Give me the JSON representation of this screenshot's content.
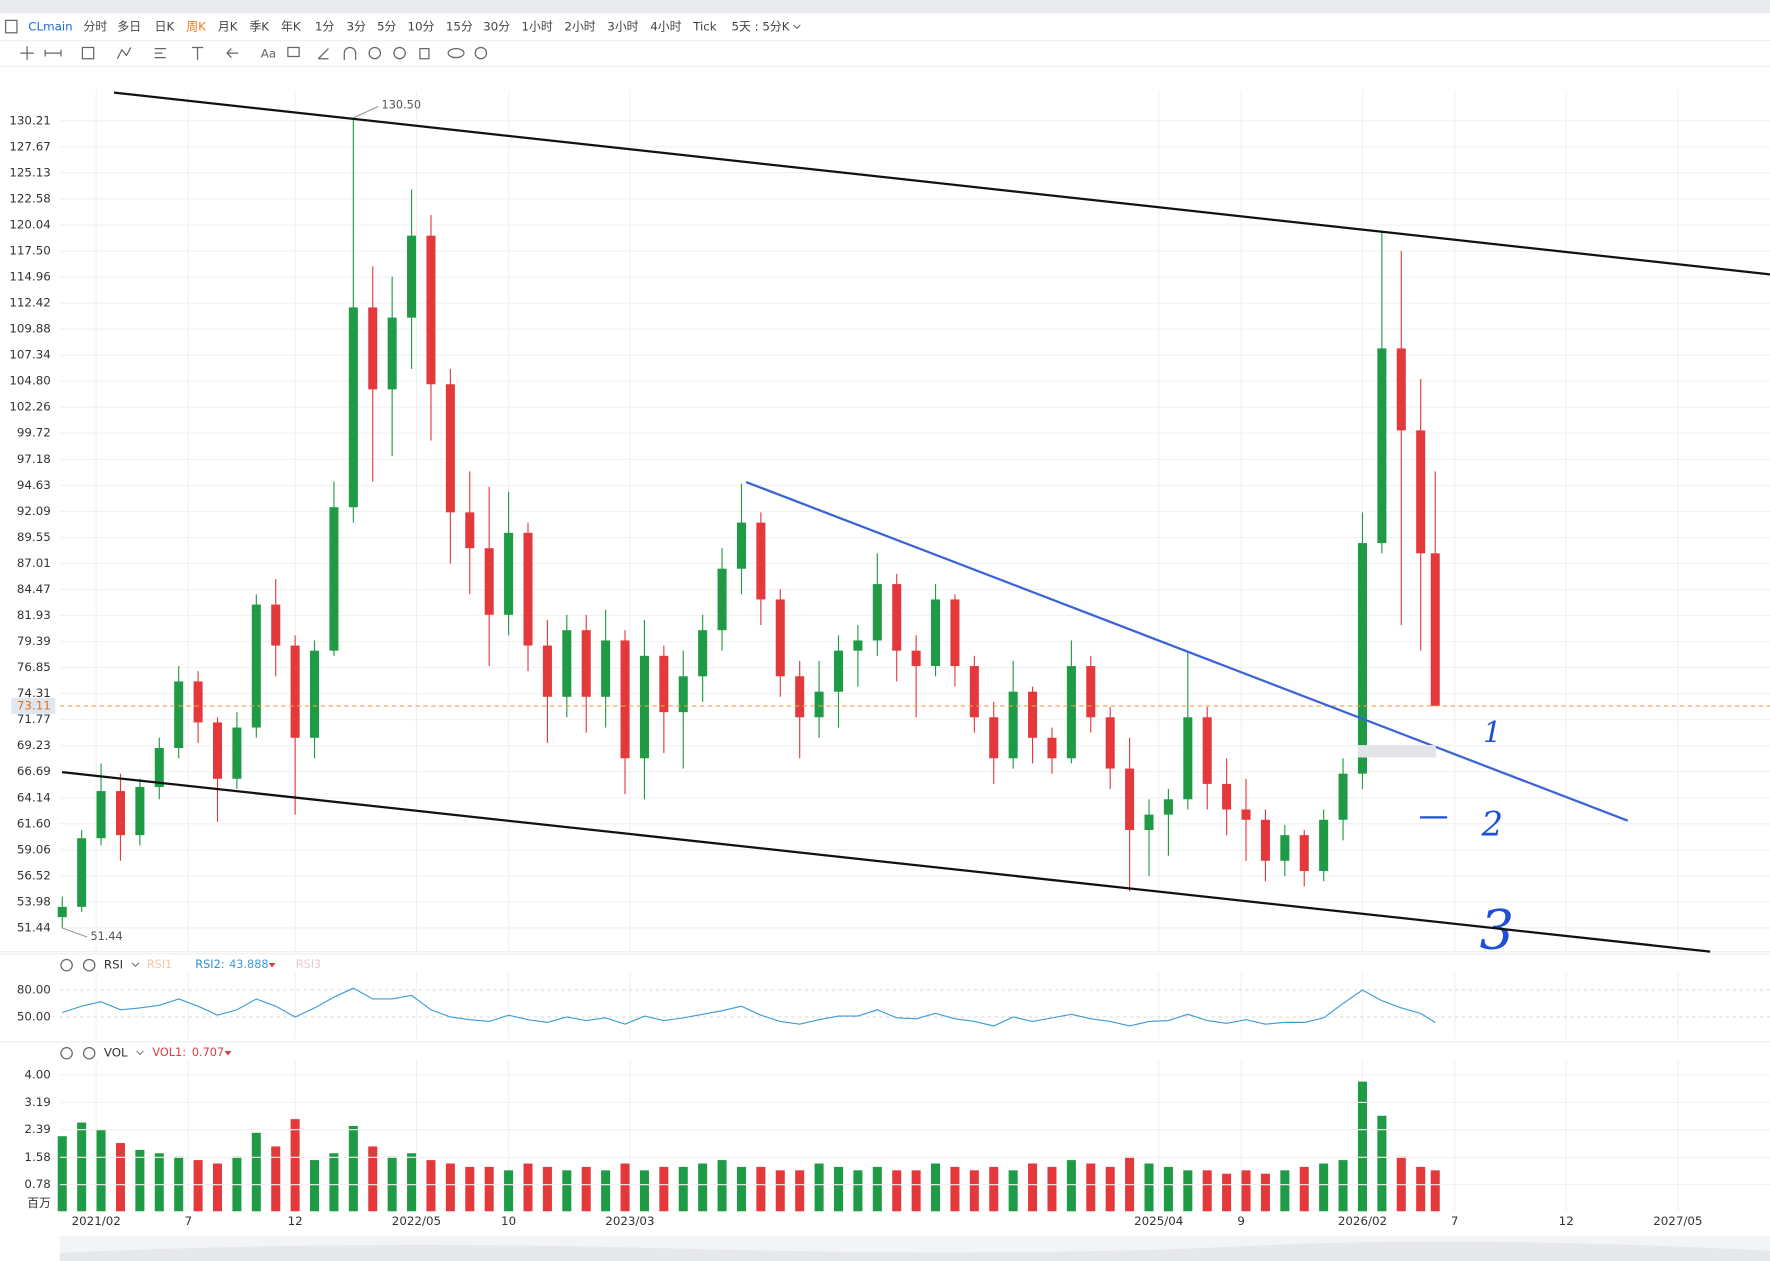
{
  "toolbar": {
    "symbol": "CLmain",
    "periods": [
      "分时",
      "多日",
      "日K",
      "周K",
      "月K",
      "季K",
      "年K",
      "1分",
      "3分",
      "5分",
      "10分",
      "15分",
      "30分",
      "1小时",
      "2小时",
      "3小时",
      "4小时",
      "Tick",
      "5天 : 5分K"
    ],
    "selected": 3,
    "text_tool": "Aa"
  },
  "chart_data": {
    "type": "candlestick",
    "candles": {
      "x": [
        0,
        4,
        8,
        12,
        16,
        20,
        24,
        28,
        32,
        36,
        40,
        44,
        48,
        52,
        56,
        60,
        64,
        68,
        72,
        76,
        80,
        84,
        88,
        92,
        96,
        100,
        104,
        108,
        112,
        116,
        120,
        124,
        128,
        132,
        136,
        140,
        144,
        148,
        152,
        156,
        160,
        164,
        168,
        172,
        176,
        180,
        184,
        188,
        192,
        196,
        200,
        204,
        208,
        212,
        216,
        220,
        224,
        228,
        232,
        236,
        240,
        244,
        248,
        252,
        256,
        260,
        264,
        268,
        272,
        276,
        280,
        283
      ],
      "open": [
        52.5,
        53.5,
        60.2,
        64.8,
        60.5,
        65.2,
        69.0,
        75.5,
        71.5,
        66.0,
        71.0,
        83.0,
        79.0,
        70.0,
        78.5,
        92.5,
        112.0,
        104.0,
        111.0,
        119.0,
        104.5,
        92.0,
        88.5,
        82.0,
        90.0,
        79.0,
        74.0,
        80.5,
        74.0,
        79.5,
        68.0,
        78.0,
        72.5,
        76.0,
        80.5,
        86.5,
        91.0,
        83.5,
        76.0,
        72.0,
        74.5,
        78.5,
        79.5,
        85.0,
        78.5,
        77.0,
        83.5,
        77.0,
        72.0,
        68.0,
        74.5,
        70.0,
        68.0,
        77.0,
        72.0,
        67.0,
        61.0,
        62.5,
        64.0,
        72.0,
        65.5,
        63.0,
        62.0,
        58.0,
        60.5,
        57.0,
        62.0,
        66.5,
        89.0,
        108.0,
        100.0,
        88.0
      ],
      "high": [
        54.5,
        61.0,
        67.5,
        66.5,
        66.0,
        70.0,
        77.0,
        76.5,
        72.0,
        72.5,
        84.0,
        85.5,
        80.0,
        79.5,
        95.0,
        130.5,
        116.0,
        115.0,
        123.5,
        121.0,
        106.0,
        96.0,
        94.5,
        94.0,
        91.0,
        81.5,
        82.0,
        82.0,
        82.5,
        80.5,
        81.5,
        79.0,
        78.5,
        82.0,
        88.5,
        94.8,
        92.0,
        84.5,
        77.5,
        77.5,
        80.0,
        81.0,
        88.0,
        86.0,
        80.0,
        85.0,
        84.0,
        78.0,
        73.5,
        77.5,
        75.0,
        71.0,
        79.5,
        78.0,
        73.0,
        70.0,
        64.0,
        65.0,
        78.5,
        73.0,
        68.0,
        66.0,
        63.0,
        61.5,
        61.0,
        63.0,
        68.0,
        92.0,
        119.5,
        117.5,
        105.0,
        96.0
      ],
      "low": [
        51.44,
        53.0,
        59.5,
        58.0,
        59.5,
        64.0,
        68.0,
        69.5,
        61.8,
        65.0,
        70.0,
        76.0,
        62.5,
        68.0,
        78.0,
        91.0,
        95.0,
        97.5,
        106.0,
        99.0,
        87.0,
        84.0,
        77.0,
        80.0,
        76.5,
        69.5,
        72.0,
        70.5,
        71.0,
        64.5,
        64.0,
        68.5,
        67.0,
        73.5,
        78.5,
        84.0,
        81.0,
        74.0,
        68.0,
        70.0,
        71.0,
        75.0,
        78.0,
        75.5,
        72.0,
        76.0,
        75.0,
        70.5,
        65.5,
        67.0,
        67.5,
        66.5,
        67.5,
        70.5,
        65.0,
        55.0,
        56.5,
        58.5,
        63.0,
        63.0,
        60.5,
        58.0,
        56.0,
        56.5,
        55.5,
        56.0,
        60.0,
        65.0,
        88.0,
        81.0,
        78.5,
        73.11
      ],
      "close": [
        53.5,
        60.2,
        64.8,
        60.5,
        65.2,
        69.0,
        75.5,
        71.5,
        66.0,
        71.0,
        83.0,
        79.0,
        70.0,
        78.5,
        92.5,
        112.0,
        104.0,
        111.0,
        119.0,
        104.5,
        92.0,
        88.5,
        82.0,
        90.0,
        79.0,
        74.0,
        80.5,
        74.0,
        79.5,
        68.0,
        78.0,
        72.5,
        76.0,
        80.5,
        86.5,
        91.0,
        83.5,
        76.0,
        72.0,
        74.5,
        78.5,
        79.5,
        85.0,
        78.5,
        77.0,
        83.5,
        77.0,
        72.0,
        68.0,
        74.5,
        70.0,
        68.0,
        77.0,
        72.0,
        67.0,
        61.0,
        62.5,
        64.0,
        72.0,
        65.5,
        63.0,
        62.0,
        58.0,
        60.5,
        57.0,
        62.0,
        66.5,
        89.0,
        108.0,
        100.0,
        88.0,
        73.11
      ]
    },
    "up_color": "#1f9a45",
    "down_color": "#e4393c",
    "xlim": [
      -0.5,
      352
    ],
    "xticks": [
      {
        "value": 7,
        "label": "2021/02"
      },
      {
        "value": 26,
        "label": "7"
      },
      {
        "value": 48,
        "label": "12"
      },
      {
        "value": 73,
        "label": "2022/05"
      },
      {
        "value": 92,
        "label": "10"
      },
      {
        "value": 117,
        "label": "2023/03"
      },
      {
        "value": 226,
        "label": "2025/04"
      },
      {
        "value": 243,
        "label": "9"
      },
      {
        "value": 268,
        "label": "2026/02"
      },
      {
        "value": 287,
        "label": "7"
      },
      {
        "value": 310,
        "label": "12"
      },
      {
        "value": 333,
        "label": "2027/05"
      }
    ],
    "ylim": [
      49.13,
      133.18
    ],
    "yticks": [
      130.21,
      127.67,
      125.13,
      122.58,
      120.04,
      {
        "value": 117.5,
        "label": "117.50"
      },
      114.96,
      112.42,
      109.88,
      107.34,
      {
        "value": 104.8,
        "label": "104.80"
      },
      102.26,
      99.72,
      97.18,
      94.63,
      92.09,
      89.55,
      87.01,
      84.47,
      81.93,
      79.39,
      76.85,
      74.31,
      71.77,
      69.23,
      66.69,
      64.14,
      {
        "value": 61.6,
        "label": "61.60"
      },
      59.06,
      56.52,
      53.98,
      51.44
    ],
    "grid": true,
    "last_price": 73.11,
    "last_price_color": "#f0a050",
    "annotations": [
      {
        "x": 60,
        "value": 130.5,
        "label": "130.50"
      },
      {
        "x": 0,
        "value": 51.44,
        "label": "51.44"
      }
    ],
    "rsi": {
      "title": "RSI",
      "labels": [
        "RSI1",
        "RSI2:",
        "RSI3"
      ],
      "value": 43.888,
      "color": "#3d9bd6",
      "ylim": [
        26,
        95
      ],
      "yticks": [
        {
          "value": 80,
          "label": "80.00"
        },
        {
          "value": 50,
          "label": "50.00"
        }
      ],
      "values": [
        55,
        62,
        67,
        58,
        60,
        63,
        70,
        62,
        52,
        58,
        70,
        62,
        50,
        60,
        72,
        82,
        70,
        70,
        74,
        58,
        50,
        47,
        45,
        52,
        47,
        44,
        50,
        46,
        49,
        42,
        51,
        46,
        49,
        53,
        57,
        62,
        52,
        45,
        42,
        47,
        51,
        51,
        58,
        49,
        48,
        54,
        48,
        45,
        40,
        50,
        45,
        49,
        53,
        48,
        45,
        40,
        45,
        46,
        53,
        46,
        43,
        47,
        42,
        44,
        44,
        49,
        65,
        80,
        68,
        60,
        54,
        43.888
      ]
    },
    "volume": {
      "title": "VOL",
      "label": "VOL1:",
      "value": 0.707,
      "unit": "百万",
      "ylim": [
        0,
        4.3
      ],
      "yticks": [
        {
          "value": 4,
          "label": "4.00"
        },
        3.19,
        2.39,
        1.58,
        0.78
      ],
      "values": [
        2.2,
        2.6,
        2.4,
        2.0,
        1.8,
        1.7,
        1.6,
        1.5,
        1.4,
        1.6,
        2.3,
        1.9,
        2.7,
        1.5,
        1.7,
        2.5,
        1.9,
        1.6,
        1.7,
        1.5,
        1.4,
        1.3,
        1.3,
        1.2,
        1.4,
        1.3,
        1.2,
        1.3,
        1.2,
        1.4,
        1.2,
        1.3,
        1.3,
        1.4,
        1.5,
        1.3,
        1.3,
        1.2,
        1.2,
        1.4,
        1.3,
        1.2,
        1.3,
        1.2,
        1.2,
        1.4,
        1.3,
        1.2,
        1.3,
        1.2,
        1.4,
        1.3,
        1.5,
        1.4,
        1.3,
        1.6,
        1.4,
        1.3,
        1.2,
        1.2,
        1.1,
        1.2,
        1.1,
        1.2,
        1.3,
        1.4,
        1.5,
        3.8,
        2.8,
        1.6,
        1.3,
        1.2
      ]
    },
    "handwriting": [
      "1",
      "2",
      "3"
    ]
  }
}
